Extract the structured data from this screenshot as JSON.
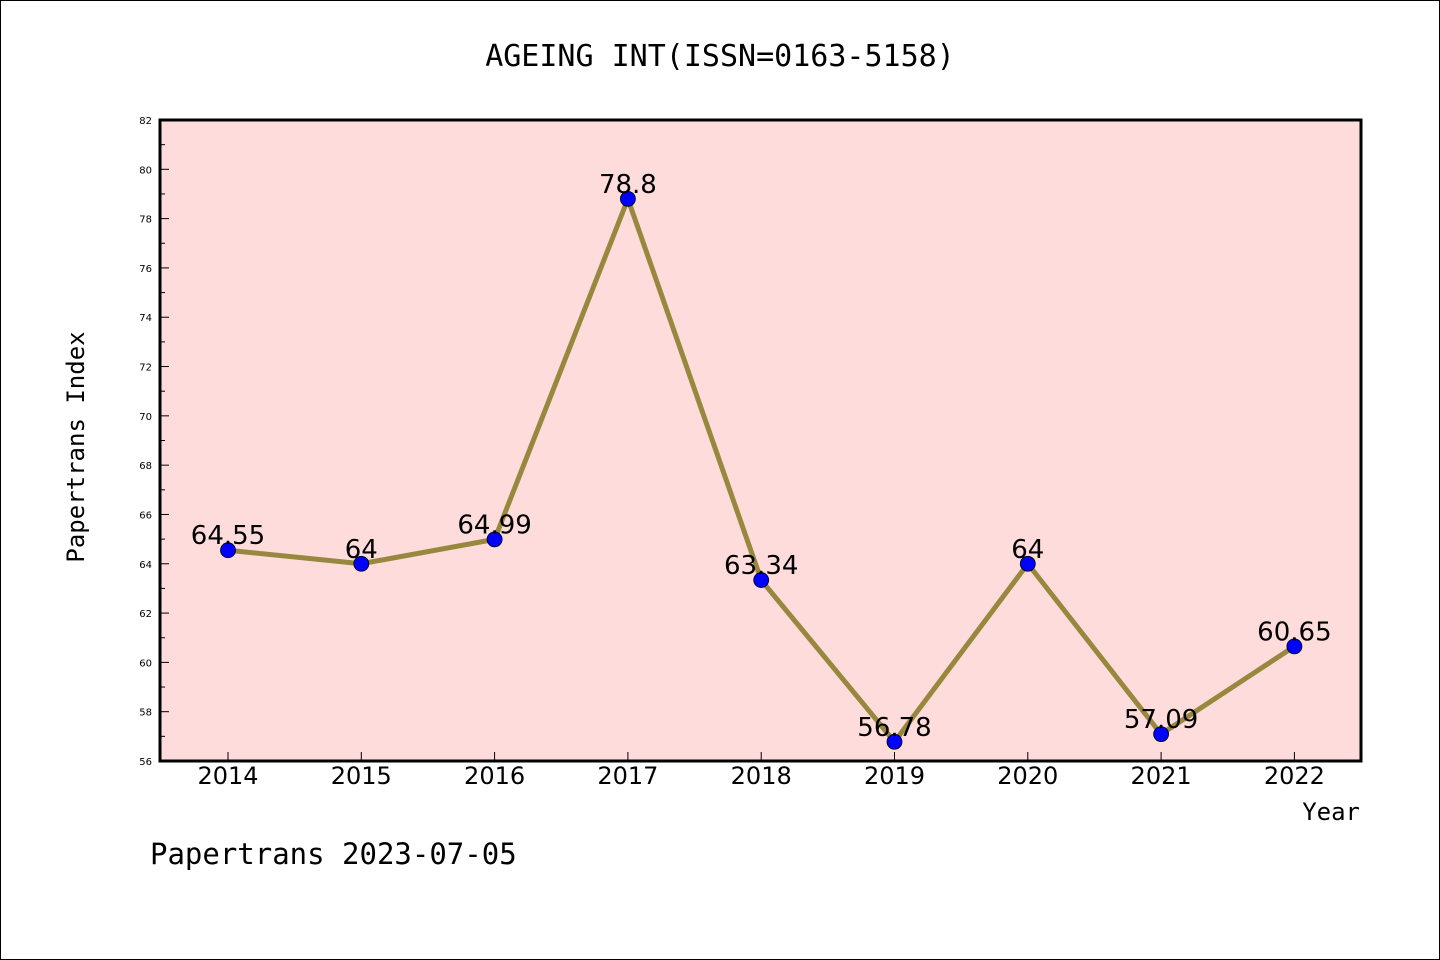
{
  "chart_data": {
    "type": "line",
    "title": "AGEING INT(ISSN=0163-5158)",
    "xlabel": "Year",
    "ylabel": "Papertrans Index",
    "categories": [
      "2014",
      "2015",
      "2016",
      "2017",
      "2018",
      "2019",
      "2020",
      "2021",
      "2022"
    ],
    "values": [
      64.55,
      64,
      64.99,
      78.8,
      63.34,
      56.78,
      64,
      57.09,
      60.65
    ],
    "data_labels": [
      "64.55",
      "64",
      "64.99",
      "78.8",
      "63.34",
      "56.78",
      "64",
      "57.09",
      "60.65"
    ],
    "ylim": [
      56,
      82
    ],
    "yticks": [
      56,
      58,
      60,
      62,
      64,
      66,
      68,
      70,
      72,
      74,
      76,
      78,
      80,
      82
    ],
    "grid": false,
    "colors": {
      "plot_background": "#ffdcdc",
      "line": "#98883e",
      "marker": "#0000ff"
    }
  },
  "footer": "Papertrans 2023-07-05"
}
